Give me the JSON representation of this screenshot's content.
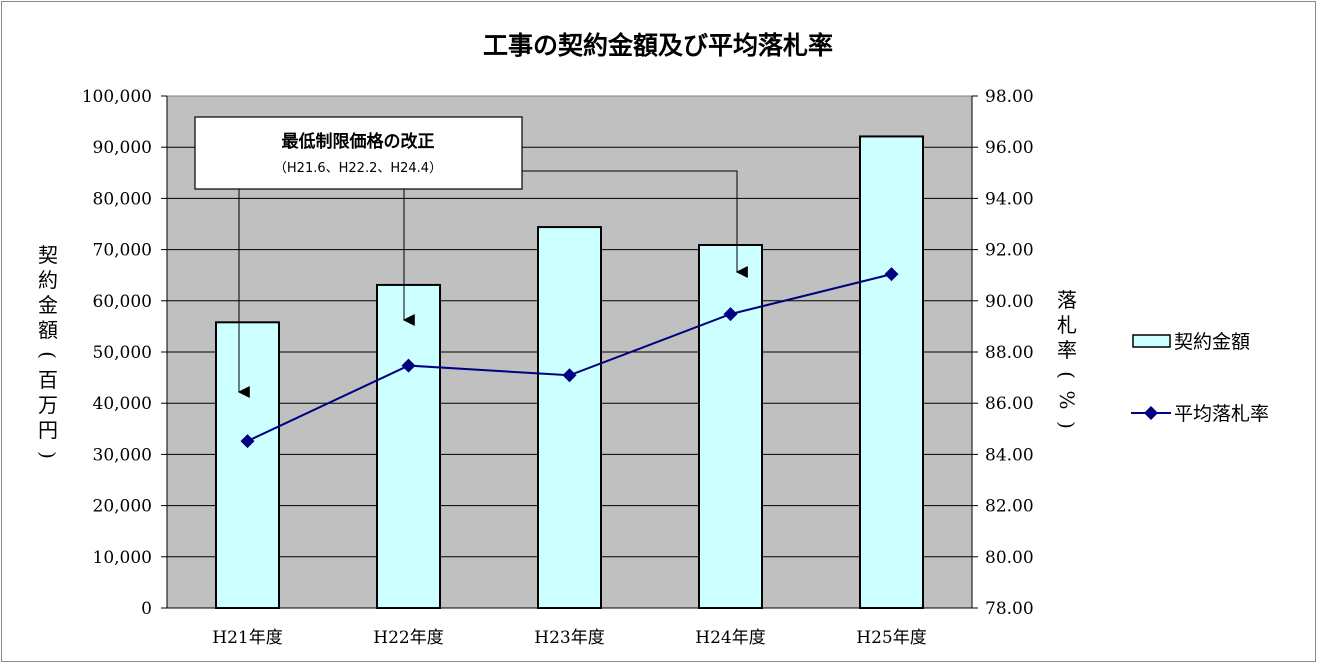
{
  "chart_data": {
    "type": "bar",
    "title": "工事の契約金額及び平均落札率",
    "categories": [
      "H21年度",
      "H22年度",
      "H23年度",
      "H24年度",
      "H25年度"
    ],
    "series": [
      {
        "name": "契約金額",
        "type": "bar",
        "axis": "left",
        "values": [
          55800,
          63100,
          74400,
          70900,
          92100
        ],
        "color": "#ccffff"
      },
      {
        "name": "平均落札率",
        "type": "line",
        "axis": "right",
        "values": [
          84.52,
          87.47,
          87.09,
          89.48,
          91.04
        ],
        "color": "#000080"
      }
    ],
    "y_left": {
      "label": "契約金額(百万円)",
      "label_chars": [
        "契",
        "約",
        "金",
        "額",
        "(",
        "百",
        "万",
        "円",
        ")"
      ],
      "range": [
        0,
        100000
      ],
      "ticks": [
        0,
        10000,
        20000,
        30000,
        40000,
        50000,
        60000,
        70000,
        80000,
        90000,
        100000
      ],
      "tick_labels": [
        "0",
        "10,000",
        "20,000",
        "30,000",
        "40,000",
        "50,000",
        "60,000",
        "70,000",
        "80,000",
        "90,000",
        "100,000"
      ]
    },
    "y_right": {
      "label": "落札率(%)",
      "label_chars": [
        "落",
        "札",
        "率",
        "(",
        "%",
        ")"
      ],
      "range": [
        78,
        98
      ],
      "ticks": [
        78,
        80,
        82,
        84,
        86,
        88,
        90,
        92,
        94,
        96,
        98
      ],
      "tick_labels": [
        "78.00",
        "80.00",
        "82.00",
        "84.00",
        "86.00",
        "88.00",
        "90.00",
        "92.00",
        "94.00",
        "96.00",
        "98.00"
      ]
    },
    "grid": true,
    "plot_background": "#c0c0c0",
    "legend_position": "right",
    "annotation": {
      "title": "最低制限価格の改正",
      "subtitle": "（H21.6、H22.2、H24.4）",
      "points_to": [
        "H21年度",
        "H22年度",
        "H24年度"
      ]
    }
  }
}
